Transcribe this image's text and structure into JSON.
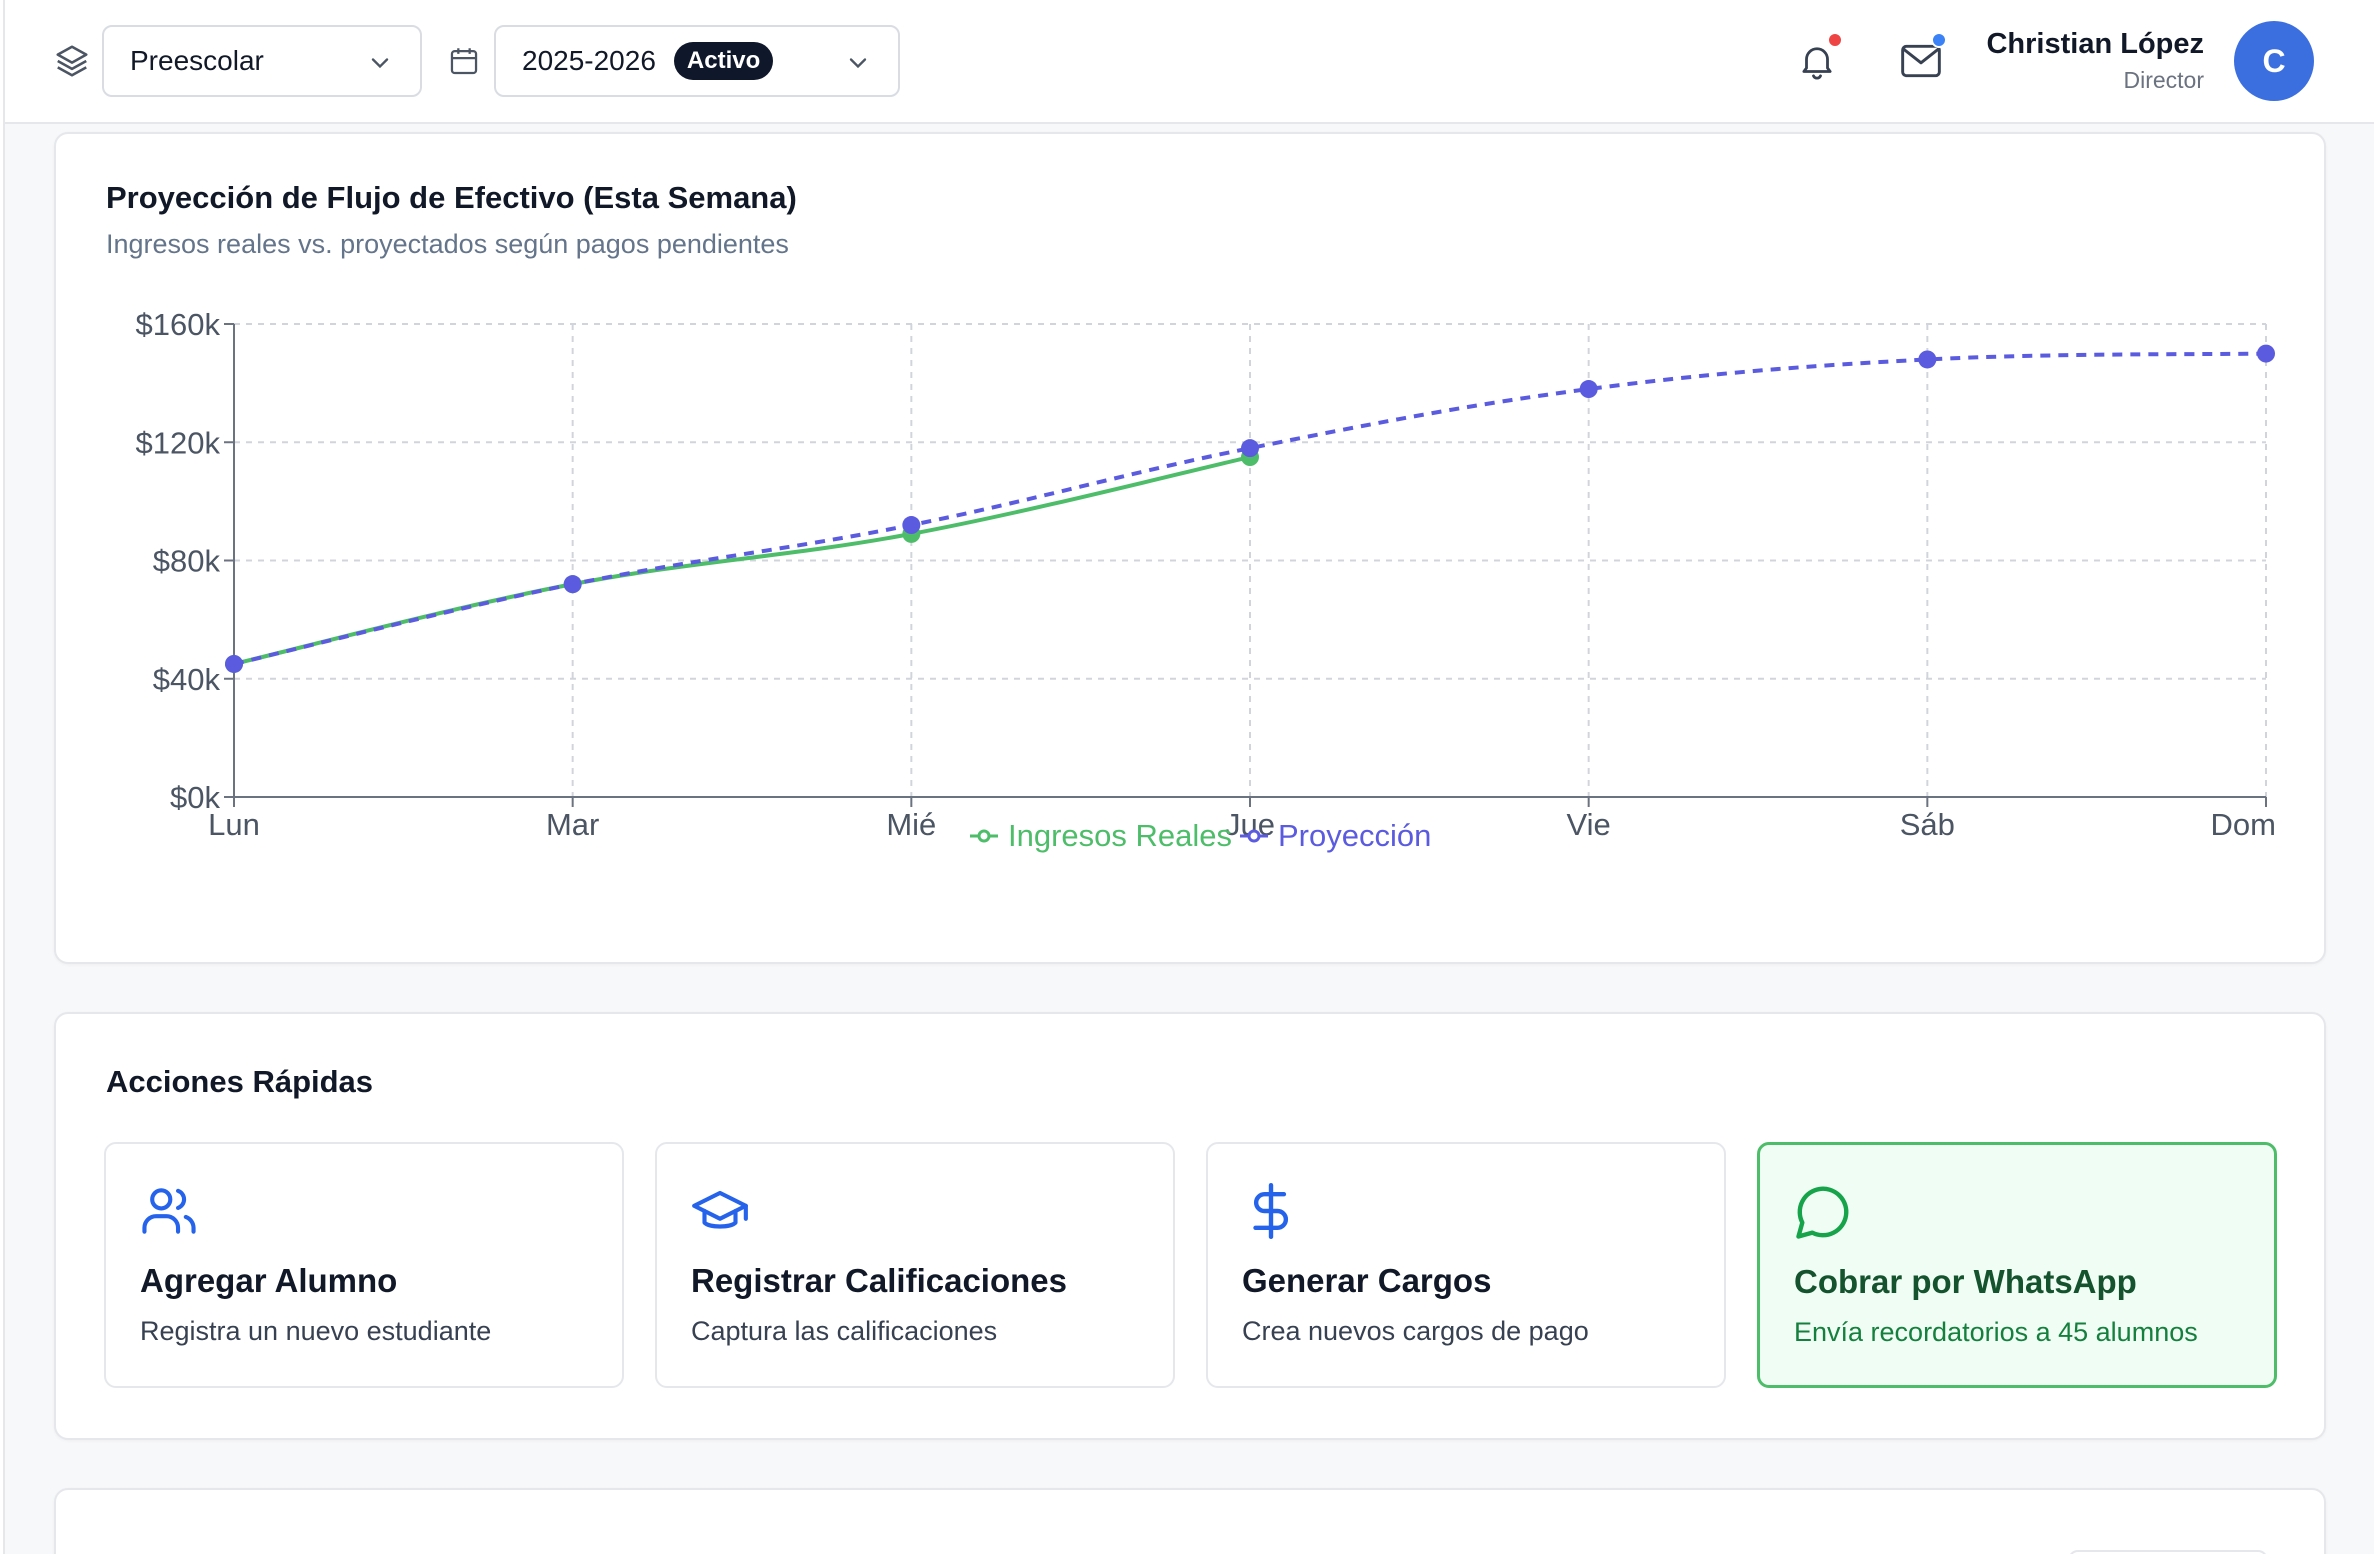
{
  "header": {
    "level_select": {
      "value": "Preescolar"
    },
    "year_select": {
      "value": "2025-2026",
      "badge": "Activo"
    },
    "user": {
      "name": "Christian López",
      "role": "Director",
      "initial": "C"
    },
    "icons": [
      "layers-icon",
      "calendar-icon",
      "bell-icon",
      "mail-icon",
      "chevron-down-icon"
    ]
  },
  "cashflow": {
    "title": "Proyección de Flujo de Efectivo (Esta Semana)",
    "subtitle": "Ingresos reales vs. proyectados según pagos pendientes"
  },
  "chart_data": {
    "type": "line",
    "categories": [
      "Lun",
      "Mar",
      "Mié",
      "Jue",
      "Vie",
      "Sáb",
      "Dom"
    ],
    "y_ticks": [
      "$0k",
      "$40k",
      "$80k",
      "$120k",
      "$160k"
    ],
    "ylim": [
      0,
      160000
    ],
    "grid": true,
    "legend_position": "bottom",
    "series": [
      {
        "name": "Ingresos Reales",
        "color": "#4ebd6a",
        "style": "solid",
        "values": [
          45000,
          72000,
          89000,
          115000,
          null,
          null,
          null
        ]
      },
      {
        "name": "Proyección",
        "color": "#5b5bdf",
        "style": "dashed",
        "values": [
          45000,
          72000,
          92000,
          118000,
          138000,
          148000,
          150000
        ]
      }
    ]
  },
  "actions": {
    "title": "Acciones Rápidas",
    "items": [
      {
        "title": "Agregar Alumno",
        "desc": "Registra un nuevo estudiante",
        "icon": "users-icon"
      },
      {
        "title": "Registrar Calificaciones",
        "desc": "Captura las calificaciones",
        "icon": "graduation-cap-icon"
      },
      {
        "title": "Generar Cargos",
        "desc": "Crea nuevos cargos de pago",
        "icon": "dollar-icon"
      },
      {
        "title": "Cobrar por WhatsApp",
        "desc": "Envía recordatorios a 45 alumnos",
        "icon": "message-circle-icon"
      }
    ]
  },
  "colors": {
    "accent": "#3b6fe0",
    "green": "#4ebd6a",
    "indigo": "#5b5bdf",
    "badge": "#0f172a"
  }
}
